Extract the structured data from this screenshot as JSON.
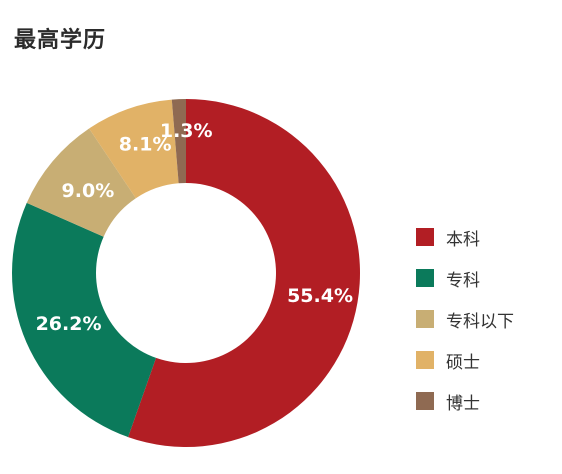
{
  "title": "最高学历",
  "chart_data": {
    "type": "pie",
    "variant": "donut",
    "title": "最高学历",
    "categories": [
      "本科",
      "专科",
      "专科以下",
      "硕士",
      "博士"
    ],
    "values": [
      55.4,
      26.2,
      9.0,
      8.1,
      1.3
    ],
    "value_labels": [
      "55.4%",
      "26.2%",
      "9.0%",
      "8.1%",
      "1.3%"
    ],
    "colors": [
      "#b21e24",
      "#0b7a5b",
      "#c8ae74",
      "#e1b267",
      "#8f6a52"
    ],
    "legend_position": "right"
  }
}
